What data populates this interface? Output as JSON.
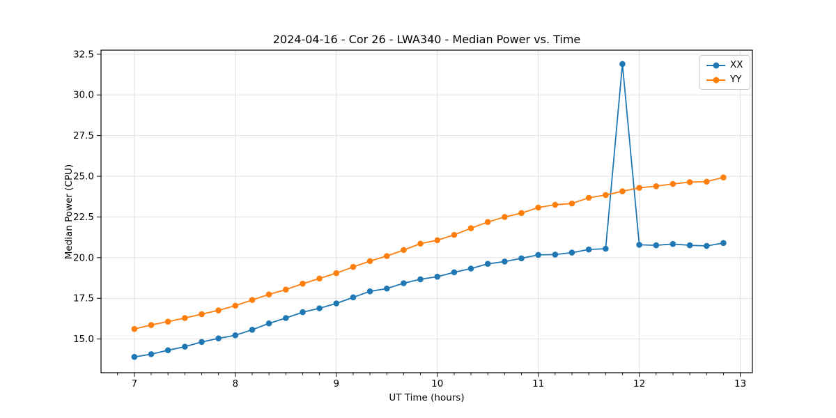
{
  "chart_data": {
    "type": "line",
    "title": "2024-04-16 - Cor 26 - LWA340 - Median Power vs. Time",
    "xlabel": "UT Time (hours)",
    "ylabel": "Median Power (CPU)",
    "xlim": [
      6.67,
      13.12
    ],
    "ylim": [
      12.93,
      32.75
    ],
    "x_ticks": [
      7,
      8,
      9,
      10,
      11,
      12,
      13
    ],
    "x_tick_labels": [
      "7",
      "8",
      "9",
      "10",
      "11",
      "12",
      "13"
    ],
    "y_ticks": [
      15.0,
      17.5,
      20.0,
      22.5,
      25.0,
      27.5,
      30.0,
      32.5
    ],
    "y_tick_labels": [
      "15.0",
      "17.5",
      "20.0",
      "22.5",
      "25.0",
      "27.5",
      "30.0",
      "32.5"
    ],
    "x_minor_step": 0.166667,
    "grid": true,
    "grid_color": "#e0e0e0",
    "legend_position": "upper right",
    "x": [
      7.0,
      7.167,
      7.333,
      7.5,
      7.667,
      7.833,
      8.0,
      8.167,
      8.333,
      8.5,
      8.667,
      8.833,
      9.0,
      9.167,
      9.333,
      9.5,
      9.667,
      9.833,
      10.0,
      10.167,
      10.333,
      10.5,
      10.667,
      10.833,
      11.0,
      11.167,
      11.333,
      11.5,
      11.667,
      11.833,
      12.0,
      12.167,
      12.333,
      12.5,
      12.667,
      12.833
    ],
    "series": [
      {
        "name": "XX",
        "color": "#1f77b4",
        "values": [
          13.9,
          14.07,
          14.31,
          14.53,
          14.82,
          15.04,
          15.23,
          15.57,
          15.96,
          16.29,
          16.65,
          16.89,
          17.19,
          17.56,
          17.93,
          18.1,
          18.43,
          18.67,
          18.83,
          19.1,
          19.33,
          19.62,
          19.76,
          19.96,
          20.17,
          20.19,
          20.31,
          20.5,
          20.55,
          31.9,
          20.79,
          20.76,
          20.84,
          20.76,
          20.72,
          20.9
        ]
      },
      {
        "name": "YY",
        "color": "#ff7f0e",
        "values": [
          15.62,
          15.86,
          16.07,
          16.29,
          16.53,
          16.76,
          17.05,
          17.4,
          17.74,
          18.04,
          18.4,
          18.72,
          19.05,
          19.43,
          19.79,
          20.1,
          20.47,
          20.86,
          21.07,
          21.4,
          21.81,
          22.19,
          22.5,
          22.74,
          23.08,
          23.25,
          23.33,
          23.68,
          23.85,
          24.08,
          24.29,
          24.39,
          24.53,
          24.64,
          24.67,
          24.93
        ]
      }
    ]
  }
}
